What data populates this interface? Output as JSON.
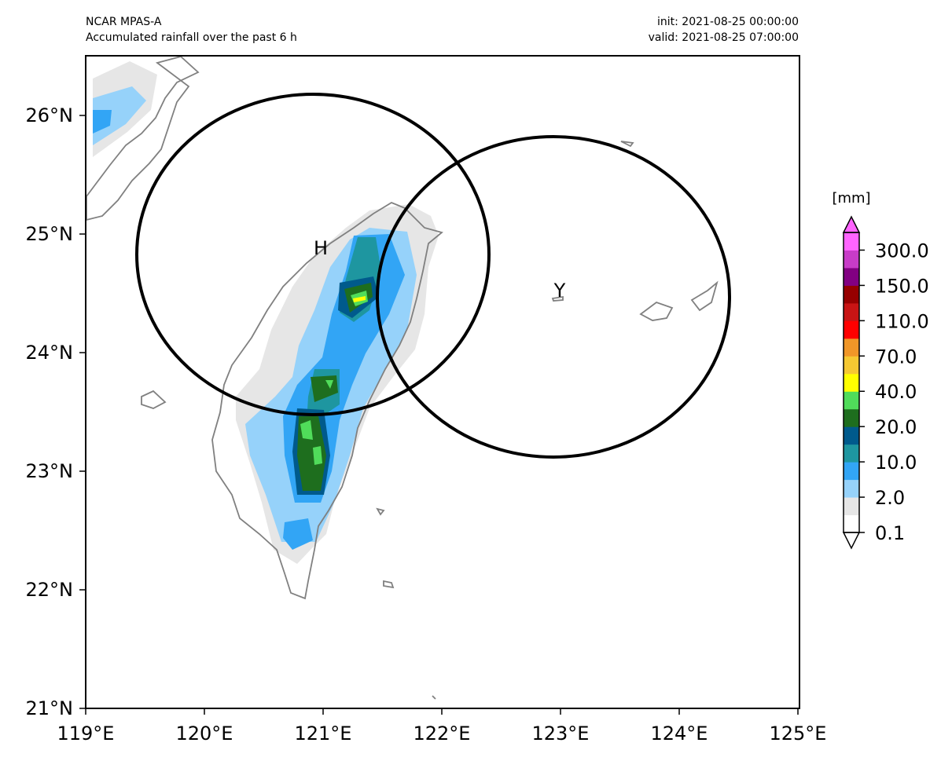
{
  "header": {
    "model": "NCAR MPAS-A",
    "subtitle": "Accumulated rainfall over the past 6 h",
    "init": "init: 2021-08-25 00:00:00",
    "valid": "valid: 2021-08-25 07:00:00"
  },
  "axes": {
    "lon_ticks": [
      "119°E",
      "120°E",
      "121°E",
      "122°E",
      "123°E",
      "124°E",
      "125°E"
    ],
    "lat_ticks": [
      "21°N",
      "22°N",
      "23°N",
      "24°N",
      "25°N",
      "26°N"
    ]
  },
  "markers": {
    "h_label": "H",
    "y_label": "Y"
  },
  "colorbar": {
    "unit": "[mm]",
    "tick_labels": [
      "0.1",
      "2.0",
      "10.0",
      "20.0",
      "40.0",
      "70.0",
      "110.0",
      "150.0",
      "300.0"
    ],
    "colors": [
      "#ffffff",
      "#e6e6e6",
      "#96d2fa",
      "#32a5f5",
      "#1e96a0",
      "#005a8c",
      "#1e6e1e",
      "#50dc5a",
      "#ffff00",
      "#f5c832",
      "#f09628",
      "#ff0000",
      "#c81414",
      "#960000",
      "#820082",
      "#c83cc8",
      "#ff64ff"
    ]
  },
  "chart_data": {
    "type": "map",
    "region": "Taiwan",
    "lon_range": [
      119,
      125
    ],
    "lat_range": [
      21,
      26.5
    ],
    "circles": [
      {
        "label": "H",
        "center_lon": 120.93,
        "center_lat": 24.83,
        "radius_deg_lat": 1.35
      },
      {
        "label": "Y",
        "center_lon": 122.95,
        "center_lat": 24.48,
        "radius_deg_lat": 1.35
      }
    ],
    "colorbar_levels": [
      0.1,
      2.0,
      10.0,
      20.0,
      40.0,
      70.0,
      110.0,
      150.0,
      300.0
    ],
    "legend_placement": "right"
  }
}
